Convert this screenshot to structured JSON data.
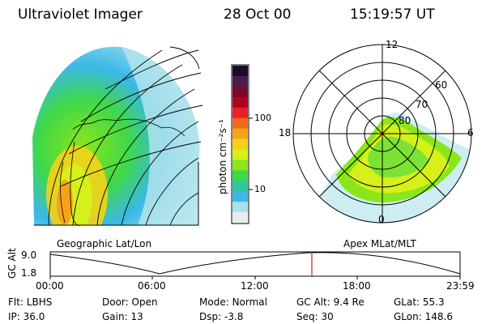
{
  "header": {
    "instrument": "Ultraviolet Imager",
    "date": "28 Oct 00",
    "time": "15:19:57 UT"
  },
  "left_panel": {
    "label": "Geographic Lat/Lon"
  },
  "right_panel": {
    "label": "Apex MLat/MLT",
    "mlt_labels": {
      "top": "12",
      "left": "18",
      "right": "6",
      "bottom": "0"
    },
    "lat_labels": [
      "60",
      "70",
      "80"
    ]
  },
  "colorbar": {
    "unit_label": "photon cm⁻²s⁻¹",
    "tick_labels": [
      "100",
      "10"
    ],
    "colors": [
      "#1a0a2e",
      "#4b1d4a",
      "#7a0a2a",
      "#b00020",
      "#e8202a",
      "#f06a1a",
      "#f5a41a",
      "#f5d21a",
      "#d6f01a",
      "#8ae61a",
      "#3fd84a",
      "#2ec8a0",
      "#3ab8e6",
      "#a8e0ee",
      "#e8eeee"
    ]
  },
  "timeline": {
    "y_axis_label": "GC Alt",
    "y_ticks": [
      "9.0",
      "1.8"
    ],
    "x_ticks": [
      "00:00",
      "06:00",
      "12:00",
      "18:00",
      "23:59"
    ],
    "marker_color": "#c82020"
  },
  "status": {
    "row1": [
      {
        "label": "Flt:",
        "value": "LBHS"
      },
      {
        "label": "Door:",
        "value": "Open"
      },
      {
        "label": "Mode:",
        "value": "Normal"
      },
      {
        "label": "GC Alt:",
        "value": "9.4 Re"
      },
      {
        "label": "GLat:",
        "value": "55.3"
      }
    ],
    "row2": [
      {
        "label": "IP:",
        "value": "36.0"
      },
      {
        "label": "Gain:",
        "value": "13"
      },
      {
        "label": "Dsp:",
        "value": "-3.8"
      },
      {
        "label": "Seq:",
        "value": "30"
      },
      {
        "label": "GLon:",
        "value": "148.6"
      }
    ]
  }
}
